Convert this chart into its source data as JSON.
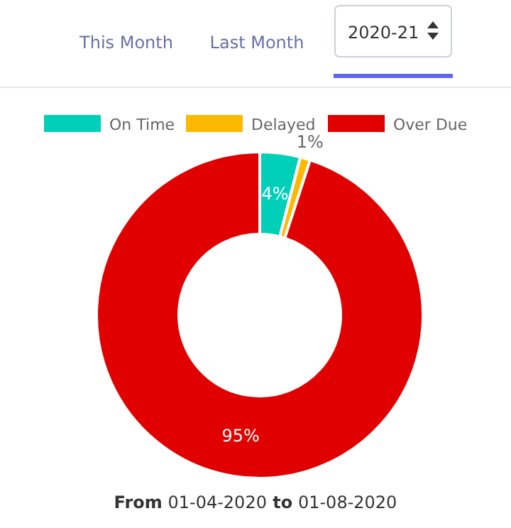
{
  "chart_data": {
    "type": "donut",
    "categories": [
      "On Time",
      "Delayed",
      "Over Due"
    ],
    "values": [
      4,
      1,
      95
    ],
    "colors": [
      "#00cfba",
      "#ffb800",
      "#e00000"
    ],
    "value_labels": [
      "4%",
      "1%",
      "95%"
    ],
    "legend": "top",
    "annotations": [
      "This Month",
      "Last Month",
      "2020-21",
      "From 01-04-2020 to 01-08-2020"
    ]
  }
}
